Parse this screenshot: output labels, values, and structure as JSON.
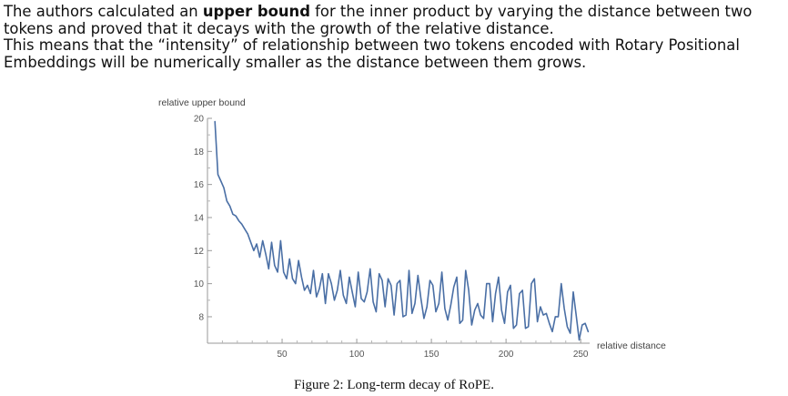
{
  "intro": {
    "line1_before": "The authors calculated an ",
    "line1_bold": "upper bound",
    "line1_after": " for the inner product by varying the distance between two tokens and proved that it decays with the growth of the relative distance.",
    "line2": "This means that the “intensity” of relationship between two tokens encoded with Rotary Positional Embeddings will be numerically smaller as the distance between them grows."
  },
  "chart_data": {
    "type": "line",
    "xlabel": "relative distance",
    "ylabel": "relative upper bound",
    "xlim": [
      0,
      256
    ],
    "ylim": [
      6.4,
      20
    ],
    "xticks": [
      50,
      100,
      150,
      200,
      250
    ],
    "yticks": [
      8,
      10,
      12,
      14,
      16,
      18,
      20
    ],
    "grid": false,
    "series": [
      {
        "color": "#4a6fa5",
        "x": [
          5,
          7,
          9,
          11,
          13,
          15,
          17,
          19,
          21,
          23,
          25,
          27,
          29,
          31,
          33,
          35,
          37,
          39,
          41,
          43,
          45,
          47,
          49,
          51,
          53,
          55,
          57,
          59,
          61,
          63,
          65,
          67,
          69,
          71,
          73,
          75,
          77,
          79,
          81,
          83,
          85,
          87,
          89,
          91,
          93,
          95,
          97,
          99,
          101,
          103,
          105,
          107,
          109,
          111,
          113,
          115,
          117,
          119,
          121,
          123,
          125,
          127,
          129,
          131,
          133,
          135,
          137,
          139,
          141,
          143,
          145,
          147,
          149,
          151,
          153,
          155,
          157,
          159,
          161,
          163,
          165,
          167,
          169,
          171,
          173,
          175,
          177,
          179,
          181,
          183,
          185,
          187,
          189,
          191,
          193,
          195,
          197,
          199,
          201,
          203,
          205,
          207,
          209,
          211,
          213,
          215,
          217,
          219,
          221,
          223,
          225,
          227,
          229,
          231,
          233,
          235,
          237,
          239,
          241,
          243,
          245,
          247,
          249,
          251,
          253,
          255
        ],
        "y": [
          19.8,
          16.6,
          16.2,
          15.8,
          15.0,
          14.7,
          14.2,
          14.1,
          13.8,
          13.6,
          13.3,
          13.0,
          12.5,
          12.0,
          12.4,
          11.6,
          12.6,
          11.8,
          10.9,
          12.5,
          11.1,
          10.7,
          12.6,
          10.7,
          10.3,
          11.5,
          10.3,
          10.0,
          11.4,
          10.4,
          9.6,
          9.9,
          9.4,
          10.8,
          9.2,
          9.7,
          10.6,
          8.8,
          10.6,
          10.0,
          9.0,
          9.6,
          10.8,
          9.3,
          8.8,
          10.4,
          9.5,
          8.6,
          10.7,
          9.1,
          8.9,
          9.5,
          10.9,
          8.9,
          8.3,
          10.6,
          10.2,
          8.6,
          10.3,
          9.9,
          8.1,
          10.0,
          10.2,
          8.0,
          8.1,
          10.8,
          8.2,
          8.8,
          10.5,
          9.1,
          7.9,
          8.6,
          10.2,
          9.9,
          8.3,
          8.8,
          10.7,
          8.5,
          7.8,
          8.7,
          9.8,
          10.4,
          7.6,
          7.8,
          10.8,
          9.6,
          7.5,
          8.4,
          8.8,
          8.1,
          7.9,
          10.0,
          10.0,
          7.7,
          9.4,
          10.4,
          8.4,
          7.6,
          9.5,
          9.9,
          7.3,
          7.5,
          9.4,
          9.6,
          7.3,
          7.4,
          10.0,
          10.3,
          7.7,
          8.6,
          8.1,
          8.2,
          7.6,
          7.1,
          8.0,
          8.0,
          10.0,
          8.5,
          7.4,
          7.0,
          9.5,
          8.1,
          6.6,
          7.5,
          7.6,
          7.1
        ]
      }
    ]
  },
  "caption": "Figure 2: Long-term decay of RoPE."
}
